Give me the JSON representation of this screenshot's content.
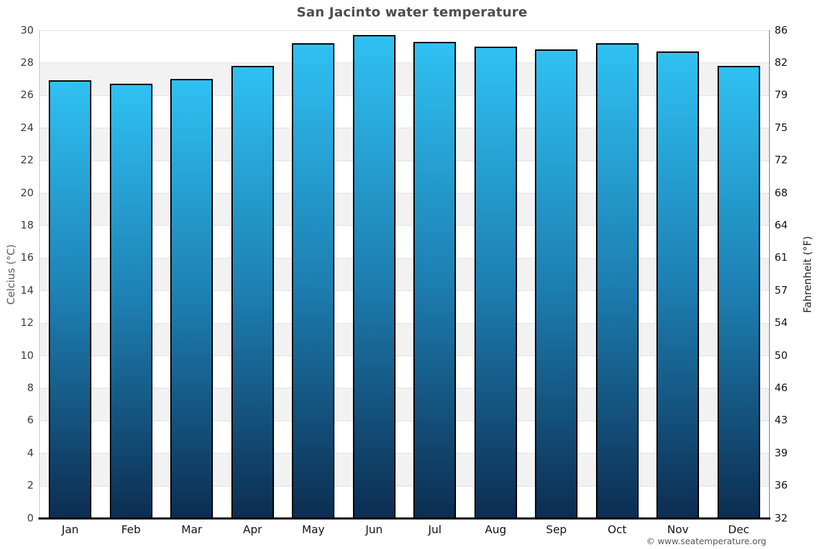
{
  "title": "San Jacinto water temperature",
  "footer": "© www.seatemperature.org",
  "axes": {
    "left_label": "Celcius (°C)",
    "right_label": "Fahrenheit (°F)"
  },
  "chart_data": {
    "type": "bar",
    "title": "San Jacinto water temperature",
    "xlabel": "",
    "ylabel_left": "Celcius (°C)",
    "ylabel_right": "Fahrenheit (°F)",
    "ylim": [
      0,
      30
    ],
    "legend_position": "none",
    "grid": "horizontal gridlines every 2°C with alternating white and light-gray bands",
    "categories": [
      "Jan",
      "Feb",
      "Mar",
      "Apr",
      "May",
      "Jun",
      "Jul",
      "Aug",
      "Sep",
      "Oct",
      "Nov",
      "Dec"
    ],
    "values": [
      26.9,
      26.7,
      27.0,
      27.8,
      29.2,
      29.7,
      29.3,
      29.0,
      28.8,
      29.2,
      28.7,
      27.8
    ],
    "yticks": [
      {
        "c": 0,
        "f": 32
      },
      {
        "c": 2,
        "f": 36
      },
      {
        "c": 4,
        "f": 39
      },
      {
        "c": 6,
        "f": 43
      },
      {
        "c": 8,
        "f": 46
      },
      {
        "c": 10,
        "f": 50
      },
      {
        "c": 12,
        "f": 54
      },
      {
        "c": 14,
        "f": 57
      },
      {
        "c": 16,
        "f": 61
      },
      {
        "c": 18,
        "f": 64
      },
      {
        "c": 20,
        "f": 68
      },
      {
        "c": 22,
        "f": 72
      },
      {
        "c": 24,
        "f": 75
      },
      {
        "c": 26,
        "f": 79
      },
      {
        "c": 28,
        "f": 82
      },
      {
        "c": 30,
        "f": 86
      }
    ],
    "colors": {
      "bar_top": "#2fc1f2",
      "bar_mid": "#1d7fb2",
      "bar_bottom": "#0c2d51",
      "bar_border": "#000000",
      "band_alt": "#f2f2f2",
      "gridline": "#e2e2e2",
      "baseline": "#000000",
      "title_text": "#4d4d4d"
    }
  }
}
